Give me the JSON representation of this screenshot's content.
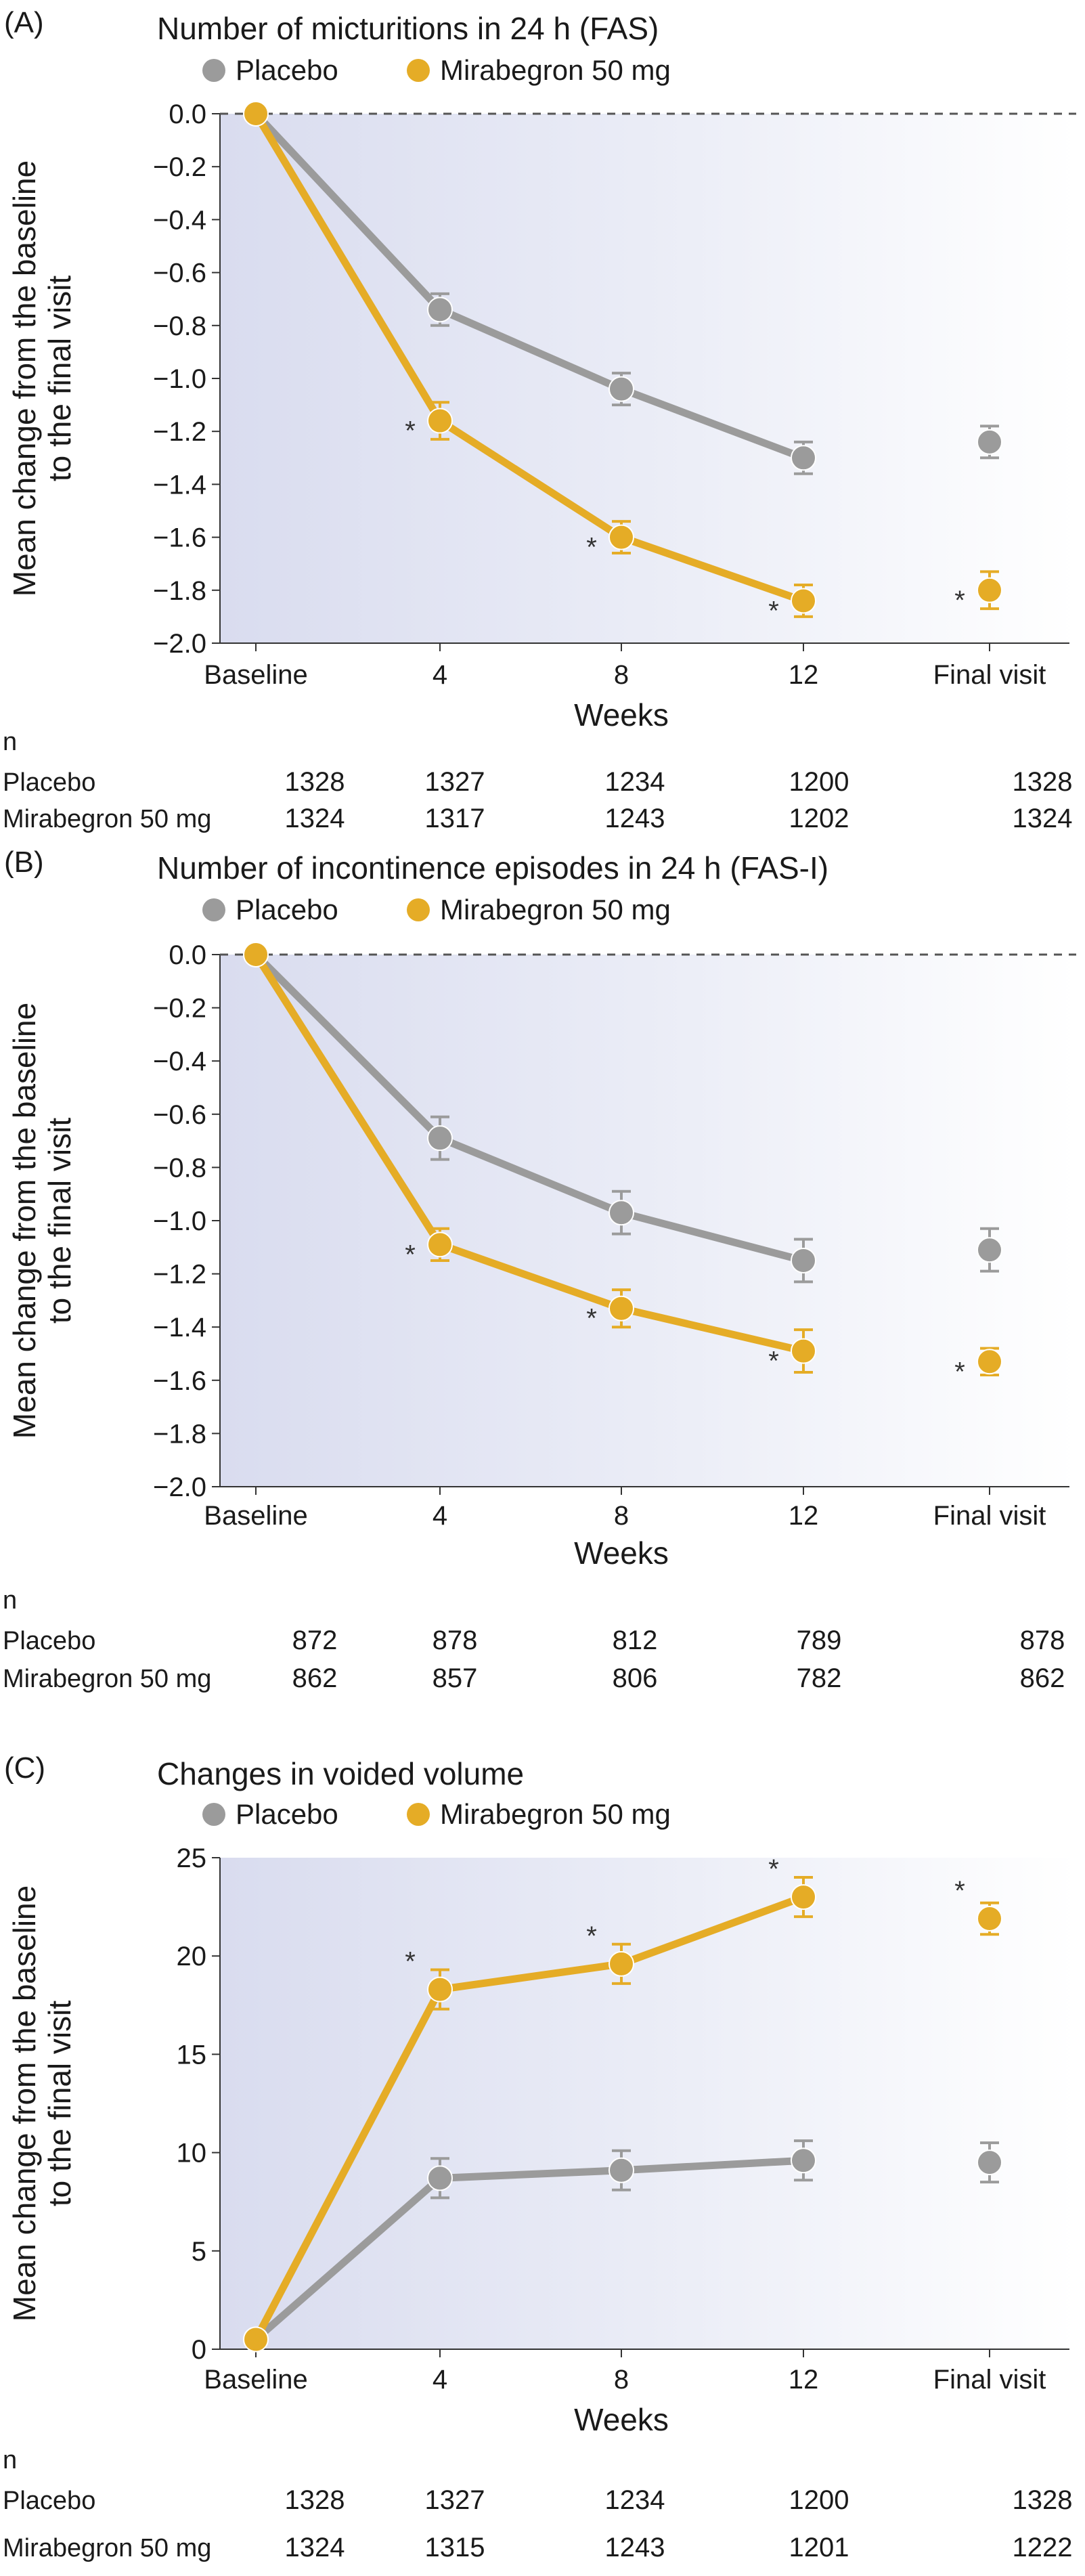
{
  "colors": {
    "placebo": "#9b9b9b",
    "mirabegron": "#e5ac26",
    "bg_left": "#dcdff0",
    "bg_right": "#ffffff"
  },
  "legend": {
    "placebo": "Placebo",
    "mirabegron": "Mirabegron 50 mg"
  },
  "chart_data": [
    {
      "panel": "(A)",
      "type": "line",
      "title": "Number of micturitions in 24 h (FAS)",
      "ylabel": "Mean change from the baseline to the final visit",
      "xlabel": "Weeks",
      "categories": [
        "Baseline",
        "4",
        "8",
        "12",
        "Final visit"
      ],
      "yticks": [
        0.0,
        -0.2,
        -0.4,
        -0.6,
        -0.8,
        -1.0,
        -1.2,
        -1.4,
        -1.6,
        -1.8,
        -2.0
      ],
      "ytick_labels": [
        "0.0",
        "−0.2",
        "−0.4",
        "−0.6",
        "−0.8",
        "−1.0",
        "−1.2",
        "−1.4",
        "−1.6",
        "−1.8",
        "−2.0"
      ],
      "ylim": [
        -2.0,
        0.0
      ],
      "zero_line": true,
      "series": [
        {
          "name": "Placebo",
          "values": [
            0.0,
            -0.74,
            -1.04,
            -1.3,
            -1.24
          ],
          "err": [
            0,
            0.06,
            0.06,
            0.06,
            0.06
          ]
        },
        {
          "name": "Mirabegron 50 mg",
          "values": [
            0.0,
            -1.16,
            -1.6,
            -1.84,
            -1.8
          ],
          "err": [
            0,
            0.07,
            0.06,
            0.06,
            0.07
          ]
        }
      ],
      "significance": [
        false,
        true,
        true,
        true,
        true
      ],
      "significance_marker": "*",
      "n_header": "n",
      "n_table": [
        {
          "label": "Placebo",
          "values": [
            "1328",
            "1327",
            "1234",
            "1200",
            "1328"
          ]
        },
        {
          "label": "Mirabegron 50 mg",
          "values": [
            "1324",
            "1317",
            "1243",
            "1202",
            "1324"
          ]
        }
      ]
    },
    {
      "panel": "(B)",
      "type": "line",
      "title": "Number of incontinence episodes in 24 h (FAS-I)",
      "ylabel": "Mean change from the baseline to the final visit",
      "xlabel": "Weeks",
      "categories": [
        "Baseline",
        "4",
        "8",
        "12",
        "Final visit"
      ],
      "yticks": [
        0.0,
        -0.2,
        -0.4,
        -0.6,
        -0.8,
        -1.0,
        -1.2,
        -1.4,
        -1.6,
        -1.8,
        -2.0
      ],
      "ytick_labels": [
        "0.0",
        "−0.2",
        "−0.4",
        "−0.6",
        "−0.8",
        "−1.0",
        "−1.2",
        "−1.4",
        "−1.6",
        "−1.8",
        "−2.0"
      ],
      "ylim": [
        -2.0,
        0.0
      ],
      "zero_line": true,
      "series": [
        {
          "name": "Placebo",
          "values": [
            0.0,
            -0.69,
            -0.97,
            -1.15,
            -1.11
          ],
          "err": [
            0,
            0.08,
            0.08,
            0.08,
            0.08
          ]
        },
        {
          "name": "Mirabegron 50 mg",
          "values": [
            0.0,
            -1.09,
            -1.33,
            -1.49,
            -1.53
          ],
          "err": [
            0,
            0.06,
            0.07,
            0.08,
            0.05
          ]
        }
      ],
      "significance": [
        false,
        true,
        true,
        true,
        true
      ],
      "significance_marker": "*",
      "n_header": "n",
      "n_table": [
        {
          "label": "Placebo",
          "values": [
            "872",
            "878",
            "812",
            "789",
            "878"
          ]
        },
        {
          "label": "Mirabegron 50 mg",
          "values": [
            "862",
            "857",
            "806",
            "782",
            "862"
          ]
        }
      ]
    },
    {
      "panel": "(C)",
      "type": "line",
      "title": "Changes in voided volume",
      "ylabel": "Mean change from the baseline to the final visit",
      "xlabel": "Weeks",
      "categories": [
        "Baseline",
        "4",
        "8",
        "12",
        "Final visit"
      ],
      "yticks": [
        0,
        5,
        10,
        15,
        20,
        25
      ],
      "ytick_labels": [
        "0",
        "5",
        "10",
        "15",
        "20",
        "25"
      ],
      "ylim": [
        0,
        25
      ],
      "zero_line": false,
      "series": [
        {
          "name": "Placebo",
          "values": [
            0.5,
            8.7,
            9.1,
            9.6,
            9.5
          ],
          "err": [
            0,
            1.0,
            1.0,
            1.0,
            1.0
          ]
        },
        {
          "name": "Mirabegron 50 mg",
          "values": [
            0.5,
            18.3,
            19.6,
            23.0,
            21.9
          ],
          "err": [
            0,
            1.0,
            1.0,
            1.0,
            0.8
          ]
        }
      ],
      "significance": [
        false,
        true,
        true,
        true,
        true
      ],
      "significance_marker": "*",
      "n_header": "n",
      "n_table": [
        {
          "label": "Placebo",
          "values": [
            "1328",
            "1327",
            "1234",
            "1200",
            "1328"
          ]
        },
        {
          "label": "Mirabegron 50 mg",
          "values": [
            "1324",
            "1315",
            "1243",
            "1201",
            "1222"
          ]
        }
      ]
    }
  ]
}
